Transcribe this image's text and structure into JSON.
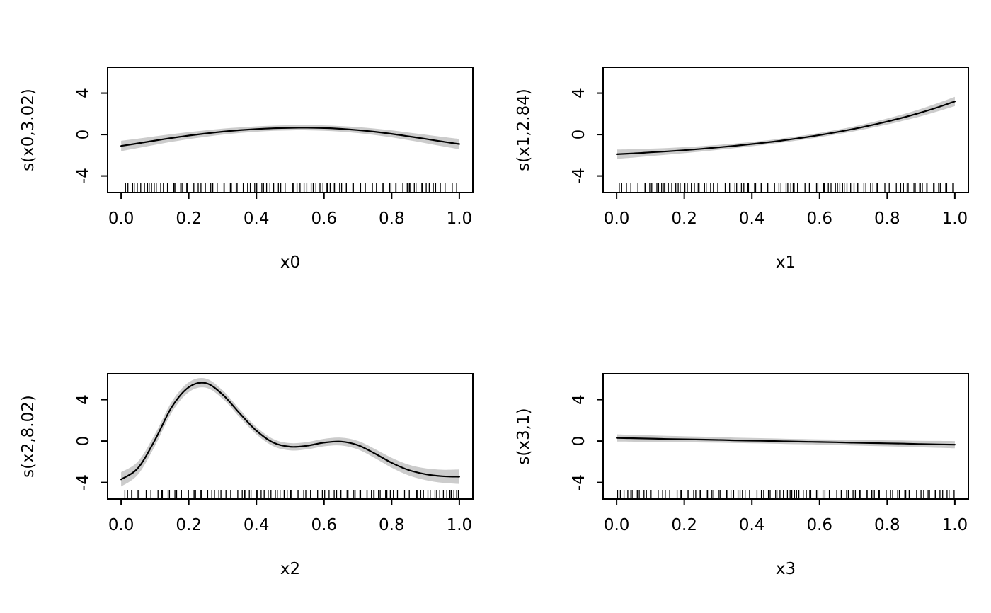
{
  "page": {
    "background": "#ffffff"
  },
  "chart_data": {
    "type": "line",
    "title": "",
    "description": "GAM smooth term plots (2x2): fitted smooths with confidence bands and rug marks",
    "layout": {
      "rows": 2,
      "cols": 2,
      "grid": false,
      "legend": "none",
      "band_color": "#cccccc",
      "line_color": "#000000",
      "axis_color": "#000000",
      "background": "#ffffff"
    },
    "xlim": [
      -0.04,
      1.04
    ],
    "ylim": [
      -5.6,
      6.5
    ],
    "x_ticks": [
      0.0,
      0.2,
      0.4,
      0.6,
      0.8,
      1.0
    ],
    "x_tick_labels": [
      "0.0",
      "0.2",
      "0.4",
      "0.6",
      "0.8",
      "1.0"
    ],
    "y_ticks": [
      -4,
      0,
      4
    ],
    "y_tick_labels": [
      "-4",
      "0",
      "4"
    ],
    "x": [
      0,
      0.05,
      0.1,
      0.15,
      0.2,
      0.25,
      0.3,
      0.35,
      0.4,
      0.45,
      0.5,
      0.55,
      0.6,
      0.65,
      0.7,
      0.75,
      0.8,
      0.85,
      0.9,
      0.95,
      1
    ],
    "band_rule": "shaded region = fit - se_band to fit + se_band",
    "panels": [
      {
        "ylabel": "s(x0,3.02)",
        "xlabel": "x0",
        "fit": [
          -1.1,
          -0.85,
          -0.58,
          -0.33,
          -0.1,
          0.1,
          0.28,
          0.42,
          0.53,
          0.61,
          0.65,
          0.66,
          0.63,
          0.55,
          0.43,
          0.27,
          0.07,
          -0.17,
          -0.42,
          -0.68,
          -0.92
        ],
        "se_band": [
          0.5,
          0.45,
          0.41,
          0.37,
          0.34,
          0.31,
          0.29,
          0.27,
          0.26,
          0.25,
          0.25,
          0.25,
          0.26,
          0.27,
          0.29,
          0.31,
          0.34,
          0.37,
          0.41,
          0.45,
          0.5
        ],
        "rug": [
          0.618,
          0.236,
          0.854,
          0.472,
          0.09,
          0.708,
          0.326,
          0.944,
          0.562,
          0.18,
          0.798,
          0.416,
          0.034,
          0.652,
          0.271,
          0.889,
          0.507,
          0.125,
          0.743,
          0.361,
          0.979,
          0.597,
          0.215,
          0.833,
          0.451,
          0.069,
          0.687,
          0.305,
          0.923,
          0.541,
          0.159,
          0.777,
          0.395,
          0.013,
          0.631,
          0.249,
          0.867,
          0.485,
          0.104,
          0.722,
          0.34,
          0.958,
          0.576,
          0.194,
          0.812,
          0.43,
          0.048,
          0.666,
          0.284,
          0.902,
          0.52,
          0.138,
          0.756,
          0.374,
          0.992,
          0.61,
          0.228,
          0.846,
          0.465,
          0.083,
          0.755,
          0.51,
          0.265,
          0.02,
          0.774,
          0.529,
          0.284,
          0.039,
          0.794,
          0.549,
          0.304,
          0.058,
          0.813,
          0.568,
          0.323,
          0.078,
          0.833,
          0.588,
          0.343,
          0.098,
          0.852,
          0.607,
          0.362,
          0.117,
          0.872,
          0.627,
          0.382,
          0.137,
          0.891,
          0.646,
          0.401,
          0.156,
          0.911,
          0.666,
          0.421,
          0.176,
          0.93,
          0.685,
          0.44,
          0.195
        ]
      },
      {
        "ylabel": "s(x1,2.84)",
        "xlabel": "x1",
        "fit": [
          -1.9,
          -1.82,
          -1.72,
          -1.62,
          -1.51,
          -1.38,
          -1.24,
          -1.09,
          -0.92,
          -0.74,
          -0.53,
          -0.3,
          -0.05,
          0.23,
          0.54,
          0.88,
          1.26,
          1.67,
          2.13,
          2.64,
          3.2
        ],
        "se_band": [
          0.45,
          0.4,
          0.36,
          0.32,
          0.29,
          0.26,
          0.24,
          0.22,
          0.21,
          0.2,
          0.2,
          0.2,
          0.21,
          0.22,
          0.24,
          0.26,
          0.29,
          0.32,
          0.36,
          0.4,
          0.45
        ],
        "rug": [
          0.668,
          0.286,
          0.904,
          0.522,
          0.14,
          0.758,
          0.376,
          0.994,
          0.612,
          0.23,
          0.848,
          0.466,
          0.084,
          0.702,
          0.321,
          0.939,
          0.557,
          0.175,
          0.793,
          0.411,
          0.029,
          0.647,
          0.265,
          0.883,
          0.501,
          0.119,
          0.737,
          0.355,
          0.973,
          0.591,
          0.209,
          0.827,
          0.445,
          0.063,
          0.681,
          0.299,
          0.917,
          0.535,
          0.153,
          0.772,
          0.39,
          0.008,
          0.626,
          0.244,
          0.862,
          0.48,
          0.098,
          0.716,
          0.334,
          0.952,
          0.57,
          0.188,
          0.806,
          0.424,
          0.042,
          0.66,
          0.278,
          0.896,
          0.515,
          0.133,
          0.085,
          0.84,
          0.595,
          0.35,
          0.104,
          0.859,
          0.614,
          0.369,
          0.124,
          0.879,
          0.634,
          0.388,
          0.143,
          0.898,
          0.653,
          0.408,
          0.163,
          0.918,
          0.673,
          0.428,
          0.182,
          0.937,
          0.692,
          0.447,
          0.202,
          0.957,
          0.712,
          0.467,
          0.221,
          0.976,
          0.731,
          0.486,
          0.241,
          0.996,
          0.751,
          0.506,
          0.26,
          0.015,
          0.77,
          0.525
        ]
      },
      {
        "ylabel": "s(x2,8.02)",
        "xlabel": "x2",
        "fit": [
          -3.7,
          -2.6,
          0.1,
          3.3,
          5.2,
          5.6,
          4.5,
          2.7,
          1.0,
          -0.15,
          -0.55,
          -0.45,
          -0.15,
          -0.05,
          -0.4,
          -1.2,
          -2.1,
          -2.8,
          -3.2,
          -3.4,
          -3.45
        ],
        "se_band": [
          0.7,
          0.63,
          0.57,
          0.52,
          0.48,
          0.44,
          0.41,
          0.38,
          0.36,
          0.35,
          0.35,
          0.35,
          0.36,
          0.38,
          0.41,
          0.44,
          0.48,
          0.52,
          0.57,
          0.63,
          0.7
        ],
        "rug": [
          0.748,
          0.366,
          0.984,
          0.602,
          0.22,
          0.838,
          0.456,
          0.074,
          0.692,
          0.31,
          0.928,
          0.546,
          0.164,
          0.782,
          0.401,
          0.019,
          0.637,
          0.255,
          0.873,
          0.491,
          0.109,
          0.727,
          0.345,
          0.963,
          0.581,
          0.199,
          0.817,
          0.435,
          0.053,
          0.671,
          0.289,
          0.907,
          0.525,
          0.143,
          0.761,
          0.379,
          0.997,
          0.615,
          0.234,
          0.852,
          0.47,
          0.088,
          0.706,
          0.324,
          0.942,
          0.56,
          0.178,
          0.796,
          0.414,
          0.032,
          0.65,
          0.268,
          0.886,
          0.504,
          0.122,
          0.74,
          0.358,
          0.976,
          0.595,
          0.213,
          0.365,
          0.12,
          0.875,
          0.63,
          0.384,
          0.139,
          0.894,
          0.649,
          0.404,
          0.159,
          0.914,
          0.668,
          0.423,
          0.178,
          0.933,
          0.688,
          0.443,
          0.198,
          0.953,
          0.708,
          0.462,
          0.217,
          0.972,
          0.727,
          0.482,
          0.237,
          0.992,
          0.747,
          0.501,
          0.256,
          0.011,
          0.766,
          0.521,
          0.276,
          0.031,
          0.786,
          0.54,
          0.295,
          0.05,
          0.805
        ]
      },
      {
        "ylabel": "s(x3,1)",
        "xlabel": "x3",
        "fit": [
          0.3,
          0.27,
          0.24,
          0.2,
          0.17,
          0.14,
          0.11,
          0.07,
          0.04,
          0.01,
          -0.03,
          -0.06,
          -0.09,
          -0.12,
          -0.16,
          -0.19,
          -0.22,
          -0.25,
          -0.29,
          -0.32,
          -0.35
        ],
        "se_band": [
          0.35,
          0.33,
          0.31,
          0.3,
          0.29,
          0.28,
          0.27,
          0.26,
          0.25,
          0.25,
          0.25,
          0.25,
          0.25,
          0.26,
          0.27,
          0.28,
          0.29,
          0.3,
          0.31,
          0.33,
          0.35
        ],
        "rug": [
          0.908,
          0.526,
          0.144,
          0.762,
          0.38,
          0.998,
          0.616,
          0.234,
          0.852,
          0.47,
          0.088,
          0.706,
          0.324,
          0.942,
          0.561,
          0.179,
          0.797,
          0.415,
          0.033,
          0.651,
          0.269,
          0.887,
          0.505,
          0.123,
          0.741,
          0.359,
          0.977,
          0.595,
          0.213,
          0.831,
          0.449,
          0.067,
          0.685,
          0.303,
          0.921,
          0.539,
          0.157,
          0.775,
          0.393,
          0.011,
          0.629,
          0.247,
          0.865,
          0.483,
          0.102,
          0.72,
          0.338,
          0.956,
          0.574,
          0.192,
          0.81,
          0.428,
          0.046,
          0.664,
          0.282,
          0.9,
          0.518,
          0.136,
          0.754,
          0.372,
          0.925,
          0.68,
          0.435,
          0.19,
          0.944,
          0.699,
          0.454,
          0.209,
          0.964,
          0.719,
          0.474,
          0.228,
          0.983,
          0.738,
          0.493,
          0.248,
          0.003,
          0.758,
          0.513,
          0.268,
          0.022,
          0.777,
          0.532,
          0.287,
          0.042,
          0.797,
          0.552,
          0.307,
          0.061,
          0.816,
          0.571,
          0.326,
          0.081,
          0.836,
          0.591,
          0.346,
          0.1,
          0.855,
          0.61,
          0.365
        ]
      }
    ]
  }
}
